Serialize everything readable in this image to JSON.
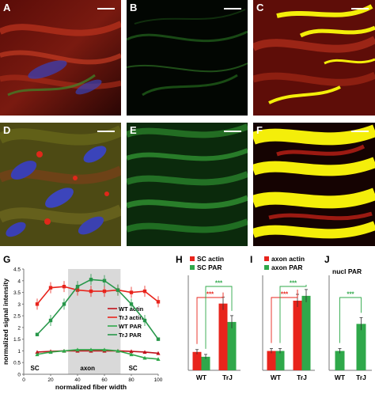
{
  "figure": {
    "panels_top": [
      {
        "label": "A"
      },
      {
        "label": "B"
      },
      {
        "label": "C"
      }
    ],
    "panels_mid": [
      {
        "label": "D"
      },
      {
        "label": "E"
      },
      {
        "label": "F"
      }
    ],
    "colors": {
      "red": "#e8241c",
      "green": "#2fa84a",
      "dark_red": "#c0121b",
      "band": "#d9d9d9",
      "yellow": "#f4ee0a"
    }
  },
  "chart_data": [
    {
      "label": "G",
      "type": "line",
      "xlabel": "normalized fiber width",
      "ylabel": "normalized signal intensity",
      "x": [
        10,
        20,
        30,
        40,
        50,
        60,
        70,
        80,
        90,
        100
      ],
      "xticks": [
        0,
        20,
        40,
        60,
        80,
        100
      ],
      "yticks": [
        0,
        0.5,
        1,
        1.5,
        2,
        2.5,
        3,
        3.5,
        4,
        4.5
      ],
      "xlim": [
        0,
        100
      ],
      "ylim": [
        0,
        4.5
      ],
      "shaded_region": [
        33,
        72
      ],
      "region_labels": [
        "SC",
        "axon",
        "SC"
      ],
      "series": [
        {
          "name": "WT actin",
          "color": "#c0121b",
          "values": [
            0.95,
            0.98,
            1.0,
            1.0,
            1.0,
            1.0,
            1.0,
            0.98,
            0.95,
            0.9
          ]
        },
        {
          "name": "TrJ actin",
          "color": "#e8241c",
          "values": [
            3.0,
            3.7,
            3.75,
            3.6,
            3.55,
            3.55,
            3.6,
            3.5,
            3.55,
            3.1
          ]
        },
        {
          "name": "WT PAR",
          "color": "#2fa84a",
          "values": [
            0.85,
            0.95,
            1.0,
            1.05,
            1.05,
            1.05,
            1.0,
            0.85,
            0.7,
            0.65
          ]
        },
        {
          "name": "TrJ PAR",
          "color": "#27974a",
          "values": [
            1.7,
            2.3,
            3.0,
            3.75,
            4.05,
            4.0,
            3.6,
            3.0,
            2.3,
            1.5
          ]
        }
      ]
    },
    {
      "label": "H",
      "type": "bar",
      "categories": [
        "WT",
        "TrJ"
      ],
      "ylim": [
        0,
        4.5
      ],
      "series": [
        {
          "name": "SC actin",
          "color": "#e8241c",
          "values": [
            0.95,
            3.45
          ]
        },
        {
          "name": "SC PAR",
          "color": "#2fa84a",
          "values": [
            0.7,
            2.5
          ]
        }
      ],
      "significance": [
        "***",
        "***"
      ]
    },
    {
      "label": "I",
      "type": "bar",
      "categories": [
        "WT",
        "TrJ"
      ],
      "ylim": [
        0,
        4.5
      ],
      "series": [
        {
          "name": "axon actin",
          "color": "#e8241c",
          "values": [
            1.0,
            3.6
          ]
        },
        {
          "name": "axon PAR",
          "color": "#2fa84a",
          "values": [
            1.0,
            3.85
          ]
        }
      ],
      "significance": [
        "***",
        "***"
      ]
    },
    {
      "label": "J",
      "type": "bar",
      "title": "nucl PAR",
      "categories": [
        "WT",
        "TrJ"
      ],
      "ylim": [
        0,
        4.5
      ],
      "series": [
        {
          "name": "",
          "color": "#2fa84a",
          "values": [
            1.0,
            2.4
          ]
        }
      ],
      "significance": [
        "***"
      ]
    }
  ]
}
